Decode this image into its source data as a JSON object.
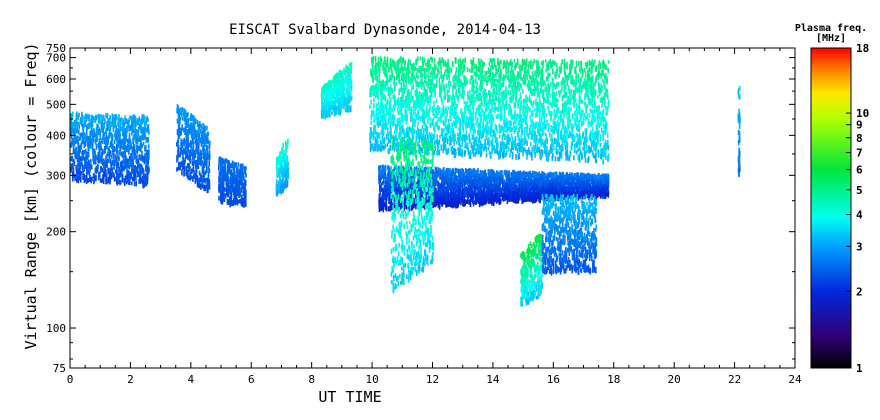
{
  "chart_data": {
    "type": "scatter",
    "title": "EISCAT Svalbard Dynasonde, 2014-04-13",
    "xlabel": "UT TIME",
    "ylabel": "Virtual Range [km] (colour = Freq)",
    "xlim": [
      0,
      24
    ],
    "ylim": [
      75,
      750
    ],
    "y_scale": "log",
    "x_ticks": [
      0,
      2,
      4,
      6,
      8,
      10,
      12,
      14,
      16,
      18,
      20,
      22,
      24
    ],
    "x_tick_labels": [
      "0",
      "2",
      "4",
      "6",
      "8",
      "10",
      "12",
      "14",
      "16",
      "18",
      "20",
      "22",
      "24"
    ],
    "y_ticks": [
      75,
      100,
      200,
      300,
      400,
      500,
      600,
      700,
      750
    ],
    "y_tick_labels": [
      "75",
      "100",
      "200",
      "300",
      "400",
      "500",
      "600",
      "700",
      "750"
    ],
    "grid": false,
    "colorbar": {
      "title_line1": "Plasma freq.",
      "title_line2": "[MHz]",
      "scale": "log",
      "range": [
        1,
        18
      ],
      "ticks": [
        1,
        2,
        3,
        4,
        5,
        6,
        7,
        8,
        9,
        10,
        18
      ],
      "tick_labels": [
        "1",
        "2",
        "3",
        "4",
        "5",
        "6",
        "7",
        "8",
        "9",
        "10",
        "18"
      ]
    },
    "series": [
      {
        "x": [
          0.0,
          2.6
        ],
        "y_low": [
          290,
          280
        ],
        "y_high": [
          470,
          460
        ],
        "f_low": 2.1,
        "f_high": 3.3
      },
      {
        "x": [
          3.5,
          4.6
        ],
        "y_low": [
          310,
          265
        ],
        "y_high": [
          500,
          420
        ],
        "f_low": 2.2,
        "f_high": 3.0
      },
      {
        "x": [
          4.9,
          5.8
        ],
        "y_low": [
          250,
          240
        ],
        "y_high": [
          340,
          320
        ],
        "f_low": 2.2,
        "f_high": 2.6
      },
      {
        "x": [
          6.8,
          7.2
        ],
        "y_low": [
          260,
          280
        ],
        "y_high": [
          340,
          400
        ],
        "f_low": 2.8,
        "f_high": 4.5
      },
      {
        "x": [
          8.3,
          9.3
        ],
        "y_low": [
          460,
          480
        ],
        "y_high": [
          560,
          680
        ],
        "f_low": 3.2,
        "f_high": 4.5
      },
      {
        "x": [
          9.9,
          17.8
        ],
        "y_low": [
          360,
          330
        ],
        "y_high": [
          700,
          680
        ],
        "f_low": 3.0,
        "f_high": 5.5
      },
      {
        "x": [
          10.2,
          17.8
        ],
        "y_low": [
          235,
          260
        ],
        "y_high": [
          320,
          300
        ],
        "f_low": 1.8,
        "f_high": 2.8
      },
      {
        "x": [
          10.6,
          12.0
        ],
        "y_low": [
          130,
          160
        ],
        "y_high": [
          400,
          380
        ],
        "f_low": 3.2,
        "f_high": 5.5
      },
      {
        "x": [
          14.9,
          15.6
        ],
        "y_low": [
          118,
          125
        ],
        "y_high": [
          170,
          200
        ],
        "f_low": 3.0,
        "f_high": 6.5
      },
      {
        "x": [
          15.6,
          17.4
        ],
        "y_low": [
          150,
          150
        ],
        "y_high": [
          260,
          260
        ],
        "f_low": 2.2,
        "f_high": 3.5
      },
      {
        "x": [
          22.1,
          22.1
        ],
        "y_low": [
          300,
          300
        ],
        "y_high": [
          570,
          570
        ],
        "f_low": 2.5,
        "f_high": 3.5
      }
    ]
  }
}
